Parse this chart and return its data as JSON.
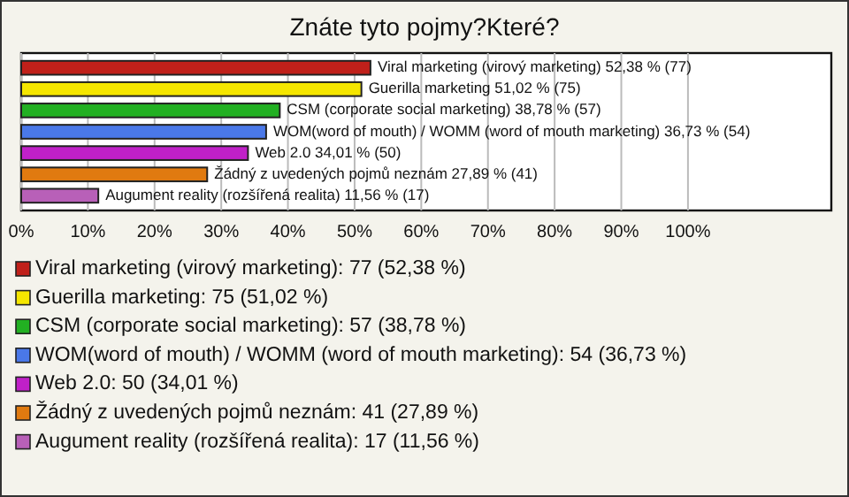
{
  "chart_data": {
    "type": "bar",
    "orientation": "horizontal",
    "title": "Znáte tyto pojmy?Které?",
    "categories": [
      "Viral marketing (virový marketing)",
      "Guerilla marketing",
      "CSM (corporate social marketing)",
      "WOM(word of mouth) / WOMM (word of mouth marketing)",
      "Web 2.0",
      "Žádný z uvedených pojmů neznám",
      "Augument reality (rozšířená realita)"
    ],
    "values": [
      52.38,
      51.02,
      38.78,
      36.73,
      34.01,
      27.89,
      11.56
    ],
    "colors": [
      "#c0201a",
      "#f5e600",
      "#22b022",
      "#4a78e8",
      "#c020c8",
      "#e07a10",
      "#b860b8"
    ],
    "value_labels": [
      "52,38 % (77)",
      "51,02 % (75)",
      "38,78 % (57)",
      "36,73 % (54)",
      "34,01 % (50)",
      "27,89 % (41)",
      "11,56 % (17)"
    ],
    "xlim": [
      0,
      121.5
    ],
    "xticks": [
      {
        "value": 0,
        "label": "0%"
      },
      {
        "value": 10,
        "label": "10%"
      },
      {
        "value": 20,
        "label": "20%"
      },
      {
        "value": 30,
        "label": "30%"
      },
      {
        "value": 40,
        "label": "40%"
      },
      {
        "value": 50,
        "label": "50%"
      },
      {
        "value": 60,
        "label": "60%"
      },
      {
        "value": 70,
        "label": "70%"
      },
      {
        "value": 80,
        "label": "80%"
      },
      {
        "value": 90,
        "label": "90%"
      },
      {
        "value": 100,
        "label": "100%"
      }
    ],
    "grid": "x",
    "annotations": [
      "Viral marketing (virový marketing): 77 (52,38 %)",
      "Guerilla marketing: 75 (51,02 %)",
      "CSM (corporate social marketing): 57 (38,78 %)",
      "WOM(word of mouth) / WOMM (word of mouth marketing): 54 (36,73 %)",
      "Web 2.0: 50 (34,01 %)",
      "Žádný z uvedených pojmů neznám: 41 (27,89 %)",
      "Augument reality (rozšířená realita): 17 (11,56 %)"
    ]
  }
}
